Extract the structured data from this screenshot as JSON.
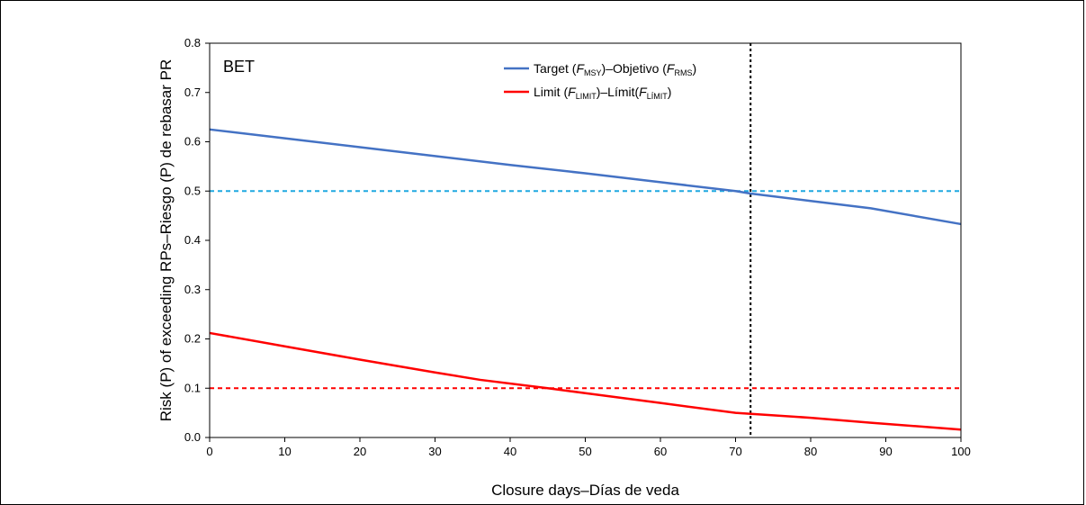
{
  "chart_data": {
    "type": "line",
    "panel_label": "BET",
    "xlabel": "Closure days–Días de veda",
    "ylabel": "Risk (P) of exceeding RPs–Riesgo (P) de rebasar PR",
    "xlim": [
      0,
      100
    ],
    "ylim": [
      0,
      0.8
    ],
    "x_ticks": [
      "0",
      "10",
      "20",
      "30",
      "40",
      "50",
      "60",
      "70",
      "80",
      "90",
      "100"
    ],
    "y_ticks": [
      "0.0",
      "0.1",
      "0.2",
      "0.3",
      "0.4",
      "0.5",
      "0.6",
      "0.7",
      "0.8"
    ],
    "legend_position": "top-center",
    "legend": {
      "target": {
        "a": "Target (",
        "f1": "F",
        "s1": "MSY",
        "b": ")–Objetivo (",
        "f2": "F",
        "s2": "RMS",
        "c": ")"
      },
      "limit": {
        "a": "Limit (",
        "f1": "F",
        "s1": "LIMIT",
        "b": ")–Límit(",
        "f2": "F",
        "s2": "LÍMIT",
        "c": ")"
      }
    },
    "series": [
      {
        "name": "Target",
        "color": "#4472c4",
        "x": [
          0,
          10,
          20,
          30,
          40,
          50,
          60,
          70,
          72,
          80,
          88,
          100
        ],
        "y": [
          0.625,
          0.607,
          0.589,
          0.571,
          0.553,
          0.536,
          0.518,
          0.5,
          0.495,
          0.48,
          0.465,
          0.433
        ]
      },
      {
        "name": "Limit",
        "color": "#ff0000",
        "x": [
          0,
          10,
          20,
          30,
          36,
          45,
          50,
          60,
          70,
          80,
          88,
          100
        ],
        "y": [
          0.212,
          0.185,
          0.158,
          0.132,
          0.117,
          0.1,
          0.09,
          0.07,
          0.05,
          0.04,
          0.03,
          0.016
        ]
      }
    ],
    "reference_lines": [
      {
        "orientation": "horizontal",
        "value": 0.5,
        "color": "#1fa8e0",
        "style": "dashed"
      },
      {
        "orientation": "horizontal",
        "value": 0.1,
        "color": "#ff0000",
        "style": "dashed"
      },
      {
        "orientation": "vertical",
        "value": 72,
        "color": "#000000",
        "style": "dotted"
      }
    ]
  }
}
